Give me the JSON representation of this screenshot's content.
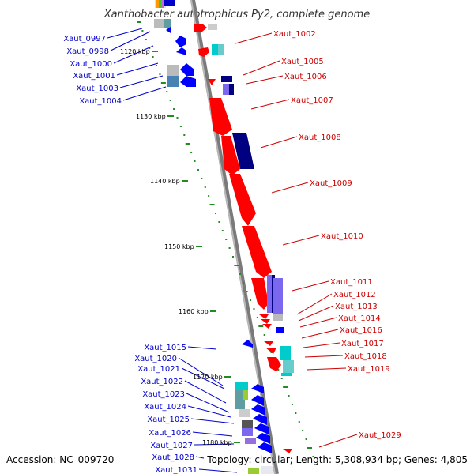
{
  "title": "Xanthobacter autotrophicus Py2, complete genome",
  "footer": {
    "accession": "Accession: NC_009720",
    "summary": "Topology: circular; Length: 5,308,934 bp; Genes: 4,805"
  },
  "kbp_ticks": [
    "1120 kbp",
    "1130 kbp",
    "1140 kbp",
    "1150 kbp",
    "1160 kbp",
    "1170 kbp",
    "1180 kbp"
  ],
  "left_labels": [
    "Xaut_0997",
    "Xaut_0998",
    "Xaut_1000",
    "Xaut_1001",
    "Xaut_1003",
    "Xaut_1004",
    "Xaut_1015",
    "Xaut_1020",
    "Xaut_1021",
    "Xaut_1022",
    "Xaut_1023",
    "Xaut_1024",
    "Xaut_1025",
    "Xaut_1026",
    "Xaut_1027",
    "Xaut_1028",
    "Xaut_1031"
  ],
  "right_labels": [
    "Xaut_1002",
    "Xaut_1005",
    "Xaut_1006",
    "Xaut_1007",
    "Xaut_1008",
    "Xaut_1009",
    "Xaut_1010",
    "Xaut_1011",
    "Xaut_1012",
    "Xaut_1013",
    "Xaut_1014",
    "Xaut_1016",
    "Xaut_1017",
    "Xaut_1018",
    "Xaut_1019",
    "Xaut_1029"
  ],
  "colors": {
    "forward_strand": "#ff0000",
    "reverse_strand": "#0000ff",
    "backbone": "#888888",
    "tick": "#228b22",
    "left_label": "#0000cc",
    "right_label": "#cc0000"
  }
}
